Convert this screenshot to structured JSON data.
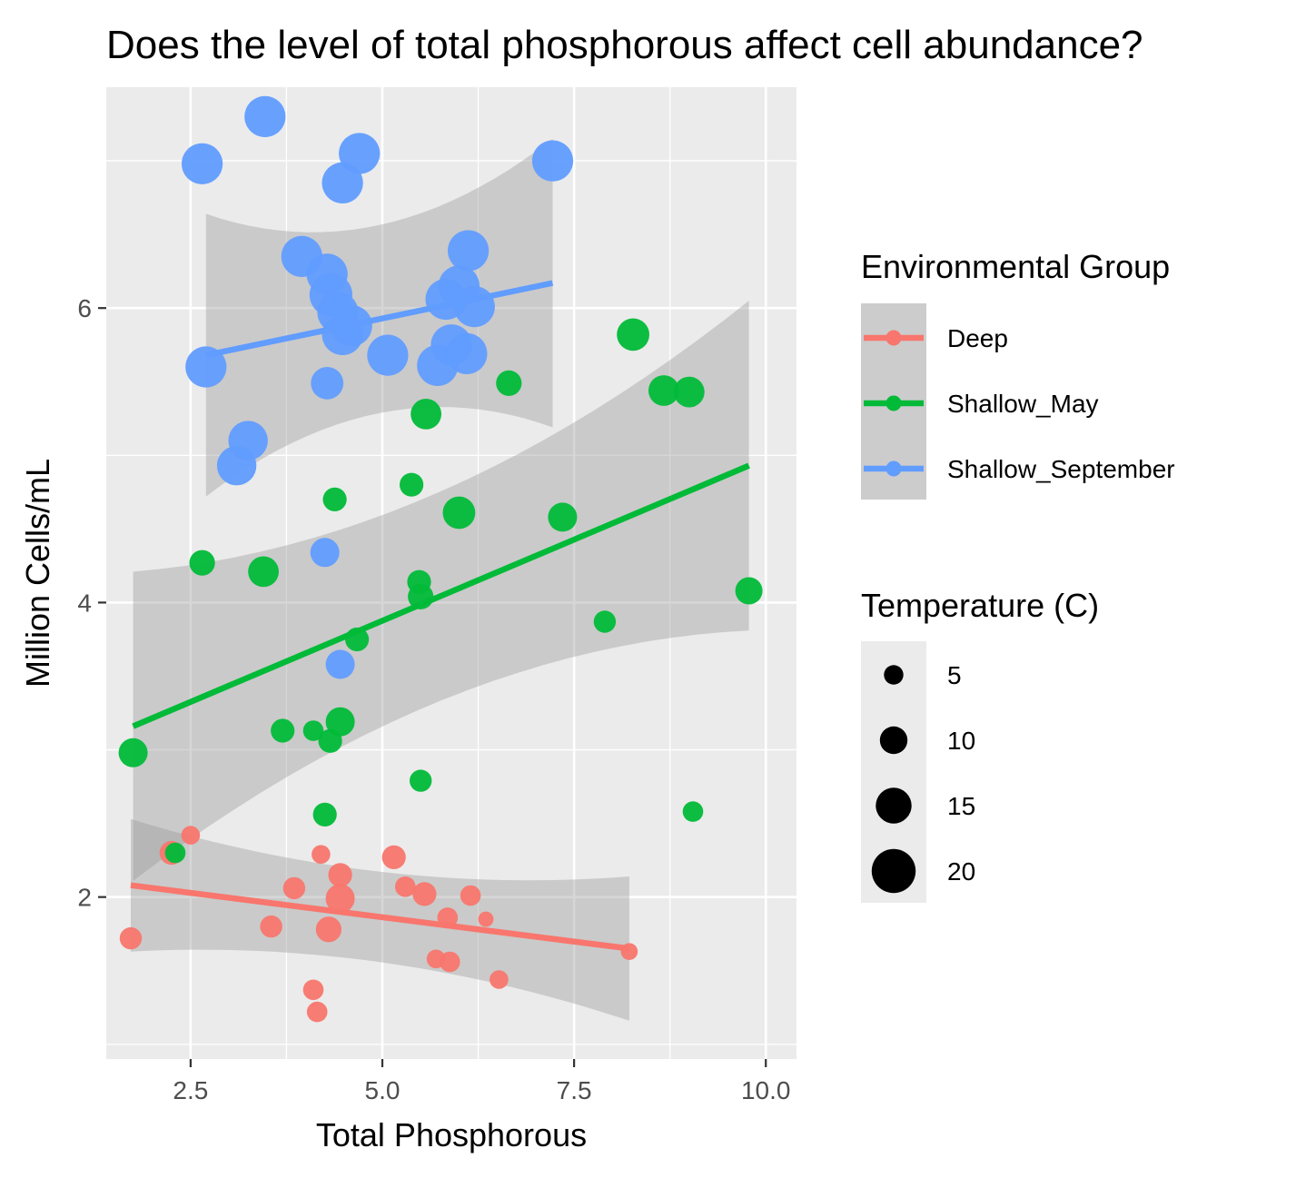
{
  "chart_data": {
    "type": "scatter",
    "title": "Does the level of total phosphorous affect cell abundance?",
    "xlabel": "Total Phosphorous",
    "ylabel": "Million Cells/mL",
    "xlim": [
      1.4,
      10.4
    ],
    "ylim": [
      0.9,
      7.5
    ],
    "x_ticks": [
      2.5,
      5.0,
      7.5,
      10.0
    ],
    "x_tick_labels": [
      "2.5",
      "5.0",
      "7.5",
      "10.0"
    ],
    "y_ticks": [
      2,
      4,
      6
    ],
    "y_tick_labels": [
      "2",
      "4",
      "6"
    ],
    "grid": true,
    "legend_position": "right",
    "color_legend": {
      "title": "Environmental Group",
      "entries": [
        "Deep",
        "Shallow_May",
        "Shallow_September"
      ]
    },
    "size_legend": {
      "title": "Temperature (C)",
      "values": [
        5,
        10,
        15,
        20
      ],
      "labels": [
        "5",
        "10",
        "15",
        "20"
      ]
    },
    "series": [
      {
        "name": "Deep",
        "color": "#f8766d",
        "points": [
          {
            "x": 1.72,
            "y": 1.72,
            "t": 6
          },
          {
            "x": 2.25,
            "y": 2.3,
            "t": 7
          },
          {
            "x": 2.5,
            "y": 2.42,
            "t": 4
          },
          {
            "x": 3.55,
            "y": 1.8,
            "t": 6
          },
          {
            "x": 3.85,
            "y": 2.06,
            "t": 6
          },
          {
            "x": 4.1,
            "y": 1.37,
            "t": 5
          },
          {
            "x": 4.15,
            "y": 1.22,
            "t": 5
          },
          {
            "x": 4.2,
            "y": 2.29,
            "t": 4
          },
          {
            "x": 4.3,
            "y": 1.78,
            "t": 8
          },
          {
            "x": 4.45,
            "y": 2.15,
            "t": 7
          },
          {
            "x": 4.45,
            "y": 1.99,
            "t": 10
          },
          {
            "x": 5.15,
            "y": 2.27,
            "t": 7
          },
          {
            "x": 5.3,
            "y": 2.07,
            "t": 5
          },
          {
            "x": 5.55,
            "y": 2.02,
            "t": 7
          },
          {
            "x": 5.7,
            "y": 1.58,
            "t": 4
          },
          {
            "x": 5.85,
            "y": 1.86,
            "t": 5
          },
          {
            "x": 5.88,
            "y": 1.56,
            "t": 5
          },
          {
            "x": 6.15,
            "y": 2.01,
            "t": 5
          },
          {
            "x": 6.35,
            "y": 1.85,
            "t": 2
          },
          {
            "x": 6.52,
            "y": 1.44,
            "t": 4
          },
          {
            "x": 8.22,
            "y": 1.63,
            "t": 3
          }
        ],
        "trend": {
          "x": [
            1.72,
            8.22
          ],
          "y": [
            2.08,
            1.65
          ],
          "ci_lower": [
            1.62,
            1.21
          ],
          "ci_upper": [
            2.53,
            2.14
          ]
        }
      },
      {
        "name": "Shallow_May",
        "color": "#00ba38",
        "points": [
          {
            "x": 1.75,
            "y": 2.98,
            "t": 10
          },
          {
            "x": 2.3,
            "y": 2.3,
            "t": 5
          },
          {
            "x": 2.65,
            "y": 4.27,
            "t": 8
          },
          {
            "x": 3.45,
            "y": 4.21,
            "t": 11
          },
          {
            "x": 3.7,
            "y": 3.13,
            "t": 7
          },
          {
            "x": 4.1,
            "y": 3.13,
            "t": 5
          },
          {
            "x": 4.25,
            "y": 2.56,
            "t": 7
          },
          {
            "x": 4.32,
            "y": 3.06,
            "t": 7
          },
          {
            "x": 4.38,
            "y": 4.7,
            "t": 7
          },
          {
            "x": 4.45,
            "y": 3.19,
            "t": 10
          },
          {
            "x": 4.67,
            "y": 3.75,
            "t": 7
          },
          {
            "x": 5.38,
            "y": 4.8,
            "t": 7
          },
          {
            "x": 5.48,
            "y": 4.14,
            "t": 7
          },
          {
            "x": 5.5,
            "y": 4.04,
            "t": 8
          },
          {
            "x": 5.5,
            "y": 2.79,
            "t": 6
          },
          {
            "x": 5.57,
            "y": 5.28,
            "t": 11
          },
          {
            "x": 6.0,
            "y": 4.61,
            "t": 12
          },
          {
            "x": 6.65,
            "y": 5.49,
            "t": 8
          },
          {
            "x": 7.35,
            "y": 4.58,
            "t": 10
          },
          {
            "x": 7.9,
            "y": 3.87,
            "t": 6
          },
          {
            "x": 8.27,
            "y": 5.82,
            "t": 12
          },
          {
            "x": 8.67,
            "y": 5.44,
            "t": 11
          },
          {
            "x": 9.0,
            "y": 5.43,
            "t": 11
          },
          {
            "x": 9.05,
            "y": 2.58,
            "t": 5
          },
          {
            "x": 9.78,
            "y": 4.08,
            "t": 9
          }
        ],
        "trend": {
          "x": [
            1.75,
            9.78
          ],
          "y": [
            3.16,
            4.93
          ],
          "ci_lower": [
            2.1,
            3.82
          ],
          "ci_upper": [
            4.21,
            6.05
          ]
        }
      },
      {
        "name": "Shallow_September",
        "color": "#619cff",
        "points": [
          {
            "x": 2.65,
            "y": 6.98,
            "t": 17
          },
          {
            "x": 2.7,
            "y": 5.6,
            "t": 17
          },
          {
            "x": 3.1,
            "y": 4.93,
            "t": 16
          },
          {
            "x": 3.25,
            "y": 5.1,
            "t": 16
          },
          {
            "x": 3.47,
            "y": 7.3,
            "t": 17
          },
          {
            "x": 3.95,
            "y": 6.35,
            "t": 17
          },
          {
            "x": 4.25,
            "y": 4.34,
            "t": 10
          },
          {
            "x": 4.28,
            "y": 5.49,
            "t": 12
          },
          {
            "x": 4.28,
            "y": 6.23,
            "t": 17
          },
          {
            "x": 4.33,
            "y": 6.09,
            "t": 18
          },
          {
            "x": 4.42,
            "y": 5.97,
            "t": 17
          },
          {
            "x": 4.45,
            "y": 3.58,
            "t": 10
          },
          {
            "x": 4.48,
            "y": 5.82,
            "t": 17
          },
          {
            "x": 4.48,
            "y": 6.85,
            "t": 17
          },
          {
            "x": 4.6,
            "y": 5.88,
            "t": 17
          },
          {
            "x": 4.7,
            "y": 7.05,
            "t": 17
          },
          {
            "x": 5.07,
            "y": 5.68,
            "t": 17
          },
          {
            "x": 5.72,
            "y": 5.61,
            "t": 17
          },
          {
            "x": 5.83,
            "y": 6.06,
            "t": 17
          },
          {
            "x": 5.9,
            "y": 5.75,
            "t": 17
          },
          {
            "x": 6.0,
            "y": 6.15,
            "t": 17
          },
          {
            "x": 6.1,
            "y": 5.69,
            "t": 17
          },
          {
            "x": 6.12,
            "y": 6.39,
            "t": 17
          },
          {
            "x": 6.2,
            "y": 6.01,
            "t": 17
          },
          {
            "x": 7.22,
            "y": 7.0,
            "t": 17
          }
        ],
        "trend": {
          "x": [
            2.7,
            7.22
          ],
          "y": [
            5.68,
            6.17
          ],
          "ci_lower": [
            4.73,
            5.18
          ],
          "ci_upper": [
            6.64,
            7.15
          ]
        }
      }
    ]
  }
}
